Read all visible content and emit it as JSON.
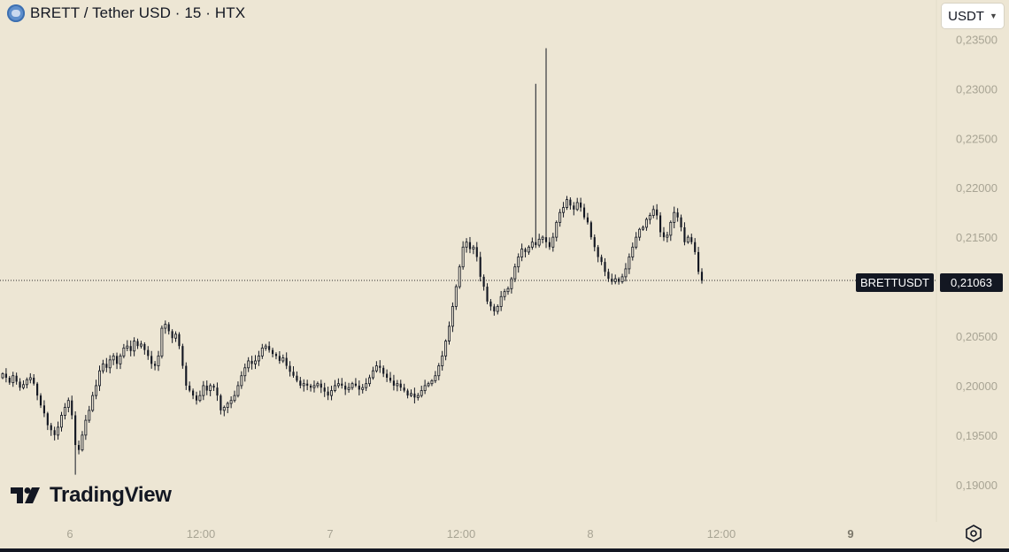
{
  "header": {
    "symbol_title": "BRETT / Tether USD · 15 · HTX",
    "icon": "brett-coin-icon"
  },
  "currency_button": {
    "label": "USDT",
    "icon": "chevron-down-icon"
  },
  "logo": {
    "text": "TradingView",
    "icon": "tradingview-logo-icon"
  },
  "price_tag": {
    "symbol": "BRETTUSDT",
    "price": "0,21063"
  },
  "settings": {
    "icon": "settings-gear-icon"
  },
  "colors": {
    "background": "#ede6d4",
    "candle": "#131722",
    "axis_text": "#a8a494",
    "dark_text": "#131722"
  },
  "chart_data": {
    "type": "candlestick",
    "interval": "15",
    "y_ticks": [
      "0,23500",
      "0,23000",
      "0,22500",
      "0,22000",
      "0,21500",
      "0,21063",
      "0,20500",
      "0,20000",
      "0,19500",
      "0,19000"
    ],
    "x_ticks": [
      "6",
      "12:00",
      "7",
      "12:00",
      "8",
      "12:00",
      "9"
    ],
    "ylim": [
      0.186,
      0.2375
    ],
    "last_price": 0.21063,
    "close": [
      0.2012,
      0.2008,
      0.2003,
      0.201,
      0.2004,
      0.1998,
      0.2001,
      0.2006,
      0.2008,
      0.2002,
      0.199,
      0.198,
      0.1972,
      0.196,
      0.1955,
      0.195,
      0.1958,
      0.197,
      0.1978,
      0.1985,
      0.197,
      0.194,
      0.1935,
      0.195,
      0.1965,
      0.1975,
      0.199,
      0.2,
      0.2015,
      0.2022,
      0.2018,
      0.2026,
      0.203,
      0.2022,
      0.203,
      0.2038,
      0.204,
      0.2035,
      0.2045,
      0.204,
      0.2042,
      0.2036,
      0.203,
      0.2022,
      0.202,
      0.203,
      0.2058,
      0.2062,
      0.2055,
      0.2048,
      0.2052,
      0.204,
      0.202,
      0.2,
      0.1995,
      0.199,
      0.1985,
      0.199,
      0.2,
      0.1995,
      0.2,
      0.1998,
      0.199,
      0.1975,
      0.1978,
      0.1982,
      0.1985,
      0.199,
      0.2,
      0.201,
      0.2018,
      0.2025,
      0.2022,
      0.2025,
      0.203,
      0.2038,
      0.204,
      0.2036,
      0.2032,
      0.203,
      0.2025,
      0.2028,
      0.202,
      0.2014,
      0.201,
      0.2005,
      0.2,
      0.2002,
      0.2,
      0.1998,
      0.2,
      0.2002,
      0.1998,
      0.1994,
      0.199,
      0.1995,
      0.2,
      0.2002,
      0.2,
      0.1996,
      0.1998,
      0.2002,
      0.2,
      0.1996,
      0.1998,
      0.2002,
      0.2008,
      0.2015,
      0.202,
      0.2018,
      0.2012,
      0.2008,
      0.2005,
      0.2,
      0.2002,
      0.1998,
      0.1995,
      0.199,
      0.1992,
      0.1988,
      0.199,
      0.1995,
      0.2,
      0.2002,
      0.2005,
      0.201,
      0.202,
      0.203,
      0.2045,
      0.206,
      0.208,
      0.21,
      0.212,
      0.214,
      0.2145,
      0.2138,
      0.214,
      0.213,
      0.211,
      0.21,
      0.2085,
      0.208,
      0.2075,
      0.208,
      0.209,
      0.2095,
      0.2098,
      0.2108,
      0.212,
      0.213,
      0.2138,
      0.2135,
      0.214,
      0.2145,
      0.2142,
      0.2148,
      0.215,
      0.2145,
      0.214,
      0.215,
      0.2165,
      0.2175,
      0.218,
      0.2188,
      0.2182,
      0.2178,
      0.2185,
      0.218,
      0.217,
      0.2165,
      0.215,
      0.214,
      0.213,
      0.2125,
      0.2115,
      0.2108,
      0.2105,
      0.2108,
      0.2105,
      0.211,
      0.2118,
      0.213,
      0.214,
      0.215,
      0.2158,
      0.216,
      0.2168,
      0.2172,
      0.2178,
      0.2172,
      0.2155,
      0.215,
      0.2152,
      0.2165,
      0.2175,
      0.217,
      0.216,
      0.2145,
      0.215,
      0.2145,
      0.2135,
      0.2115,
      0.2106
    ]
  }
}
